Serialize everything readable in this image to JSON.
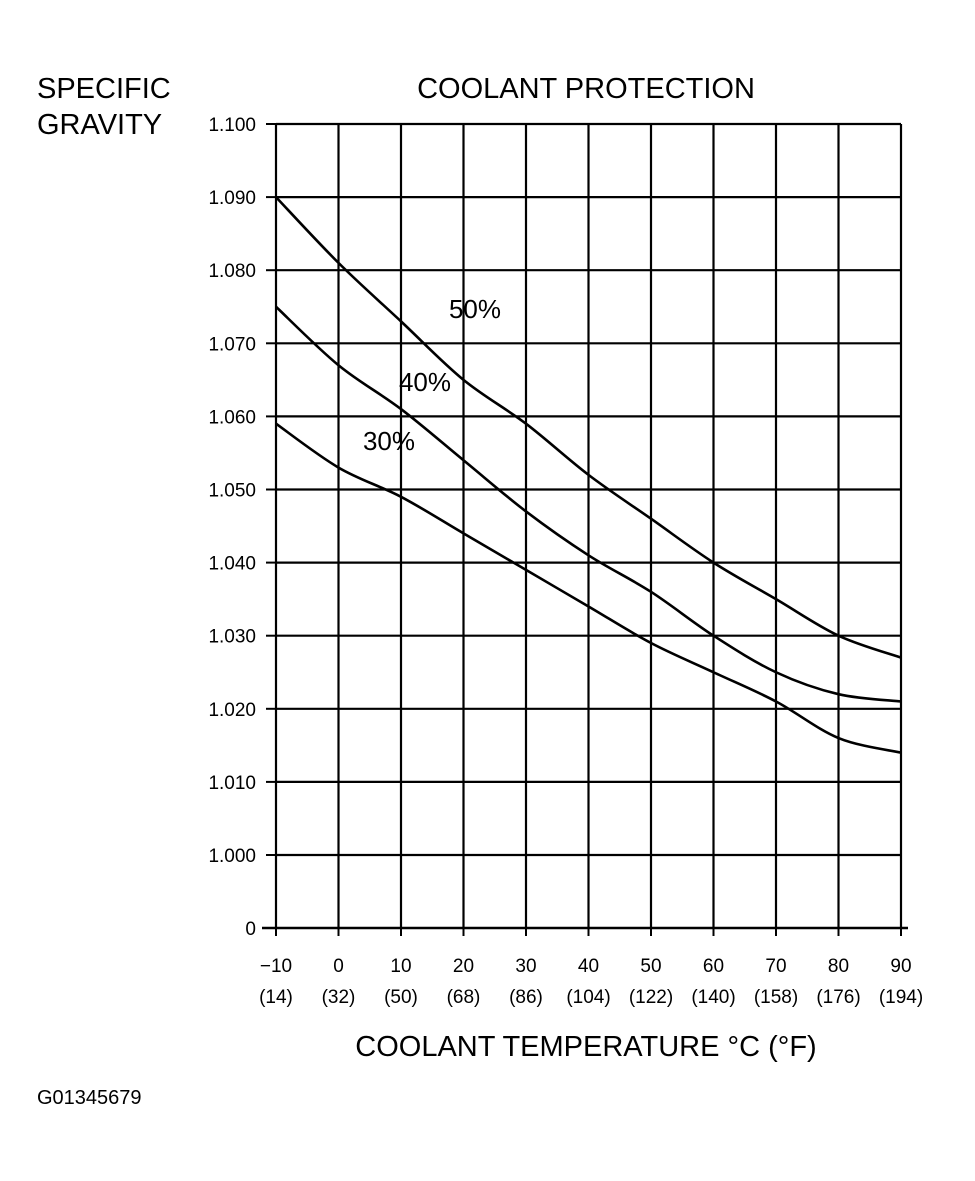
{
  "chart_data": {
    "type": "line",
    "title": "COOLANT PROTECTION",
    "ylabel_lines": [
      "SPECIFIC",
      "GRAVITY"
    ],
    "xlabel": "COOLANT TEMPERATURE °C (°F)",
    "figure_id": "G01345679",
    "x_ticks_c": [
      "−10",
      "0",
      "10",
      "20",
      "30",
      "40",
      "50",
      "60",
      "70",
      "80",
      "90"
    ],
    "x_ticks_f": [
      "(14)",
      "(32)",
      "(50)",
      "(68)",
      "(86)",
      "(104)",
      "(122)",
      "(140)",
      "(158)",
      "(176)",
      "(194)"
    ],
    "y_ticks": [
      "0",
      "1.000",
      "1.010",
      "1.020",
      "1.030",
      "1.040",
      "1.050",
      "1.060",
      "1.070",
      "1.080",
      "1.090",
      "1.100"
    ],
    "xlim": [
      -10,
      90
    ],
    "ylim": [
      0.99,
      1.1
    ],
    "grid": true,
    "axis_break": "y axis break between 0 and 1.000",
    "series": [
      {
        "name": "50%",
        "x": [
          -10,
          0,
          10,
          20,
          30,
          40,
          50,
          60,
          70,
          80,
          90
        ],
        "y": [
          1.09,
          1.081,
          1.073,
          1.065,
          1.059,
          1.052,
          1.046,
          1.04,
          1.035,
          1.03,
          1.027
        ]
      },
      {
        "name": "40%",
        "x": [
          -10,
          0,
          10,
          20,
          30,
          40,
          50,
          60,
          70,
          80,
          90
        ],
        "y": [
          1.075,
          1.067,
          1.061,
          1.054,
          1.047,
          1.041,
          1.036,
          1.03,
          1.025,
          1.022,
          1.021
        ]
      },
      {
        "name": "30%",
        "x": [
          -10,
          0,
          10,
          20,
          30,
          40,
          50,
          60,
          70,
          80,
          90
        ],
        "y": [
          1.059,
          1.053,
          1.049,
          1.044,
          1.039,
          1.034,
          1.029,
          1.025,
          1.021,
          1.016,
          1.014
        ]
      }
    ]
  }
}
